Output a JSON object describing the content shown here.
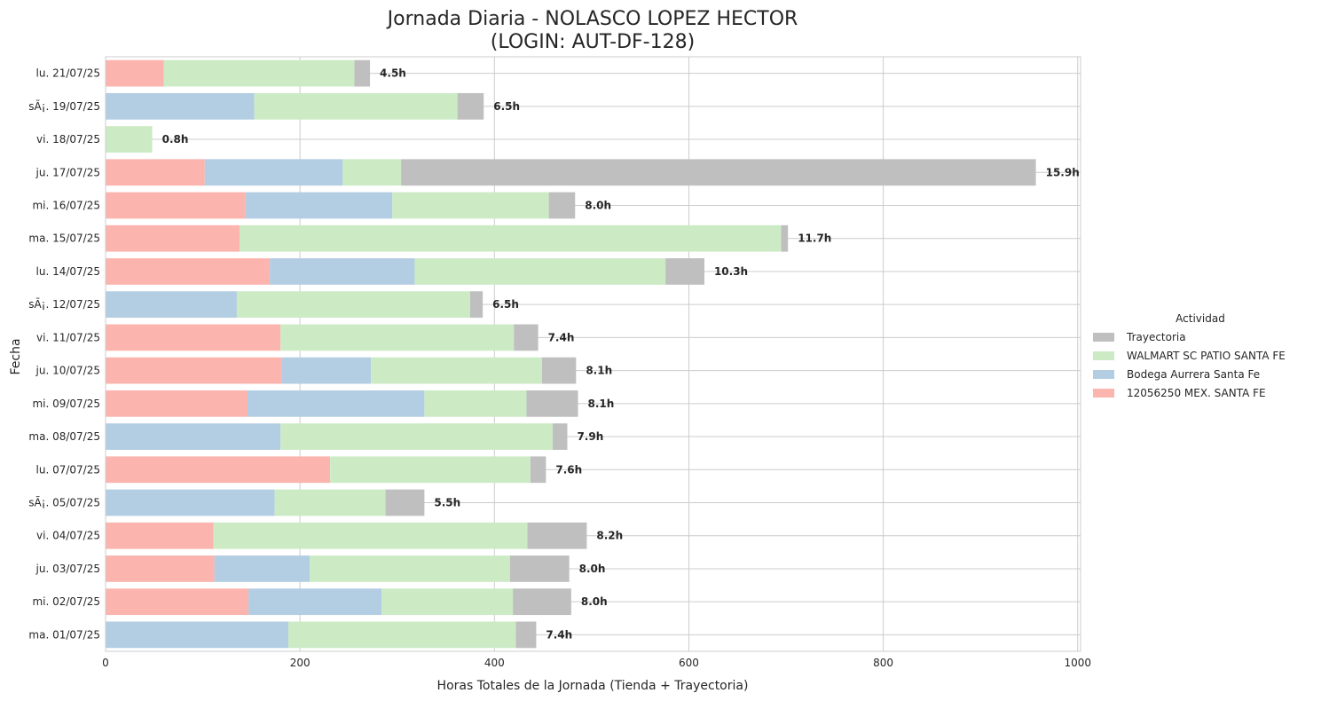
{
  "chart_data": {
    "type": "bar",
    "orientation": "horizontal",
    "stacked": true,
    "title_line1": "Jornada Diaria - NOLASCO LOPEZ HECTOR",
    "title_line2": "(LOGIN: AUT-DF-128)",
    "xlabel": "Horas Totales de la Jornada (Tienda + Trayectoria)",
    "ylabel": "Fecha",
    "xlim": [
      0,
      1003
    ],
    "xticks": [
      0,
      200,
      400,
      600,
      800,
      1000
    ],
    "grid": true,
    "legend_title": "Actividad",
    "legend_placement": "center-right",
    "categories": [
      "lu. 21/07/25",
      "sÃ¡. 19/07/25",
      "vi. 18/07/25",
      "ju. 17/07/25",
      "mi. 16/07/25",
      "ma. 15/07/25",
      "lu. 14/07/25",
      "sÃ¡. 12/07/25",
      "vi. 11/07/25",
      "ju. 10/07/25",
      "mi. 09/07/25",
      "ma. 08/07/25",
      "lu. 07/07/25",
      "sÃ¡. 05/07/25",
      "vi. 04/07/25",
      "ju. 03/07/25",
      "mi. 02/07/25",
      "ma. 01/07/25"
    ],
    "series": [
      {
        "name": "12056250 MEX. SANTA FE",
        "color": "#fbb4ae",
        "values": [
          60,
          0,
          0,
          102,
          144,
          138,
          169,
          0,
          180,
          181,
          146,
          0,
          231,
          0,
          111,
          112,
          147,
          0
        ]
      },
      {
        "name": "Bodega Aurrera Santa Fe",
        "color": "#b3cde3",
        "values": [
          0,
          153,
          0,
          142,
          151,
          0,
          149,
          135,
          0,
          92,
          182,
          180,
          0,
          174,
          0,
          98,
          137,
          188
        ]
      },
      {
        "name": "WALMART SC PATIO SANTA FE",
        "color": "#ccebc5",
        "values": [
          196,
          209,
          48,
          60,
          161,
          557,
          258,
          240,
          240,
          176,
          105,
          280,
          206,
          114,
          323,
          206,
          135,
          234
        ]
      },
      {
        "name": "Trayectoria",
        "color": "#bfbfbf",
        "values": [
          16,
          27,
          0,
          653,
          27,
          7,
          40,
          13,
          25,
          35,
          53,
          15,
          16,
          40,
          61,
          61,
          60,
          21
        ]
      }
    ],
    "legend_order": [
      "Trayectoria",
      "WALMART SC PATIO SANTA FE",
      "Bodega Aurrera Santa Fe",
      "12056250 MEX. SANTA FE"
    ],
    "total_labels": [
      "4.5h",
      "6.5h",
      "0.8h",
      "15.9h",
      "8.0h",
      "11.7h",
      "10.3h",
      "6.5h",
      "7.4h",
      "8.1h",
      "8.1h",
      "7.9h",
      "7.6h",
      "5.5h",
      "8.2h",
      "8.0h",
      "8.0h",
      "7.4h"
    ]
  }
}
